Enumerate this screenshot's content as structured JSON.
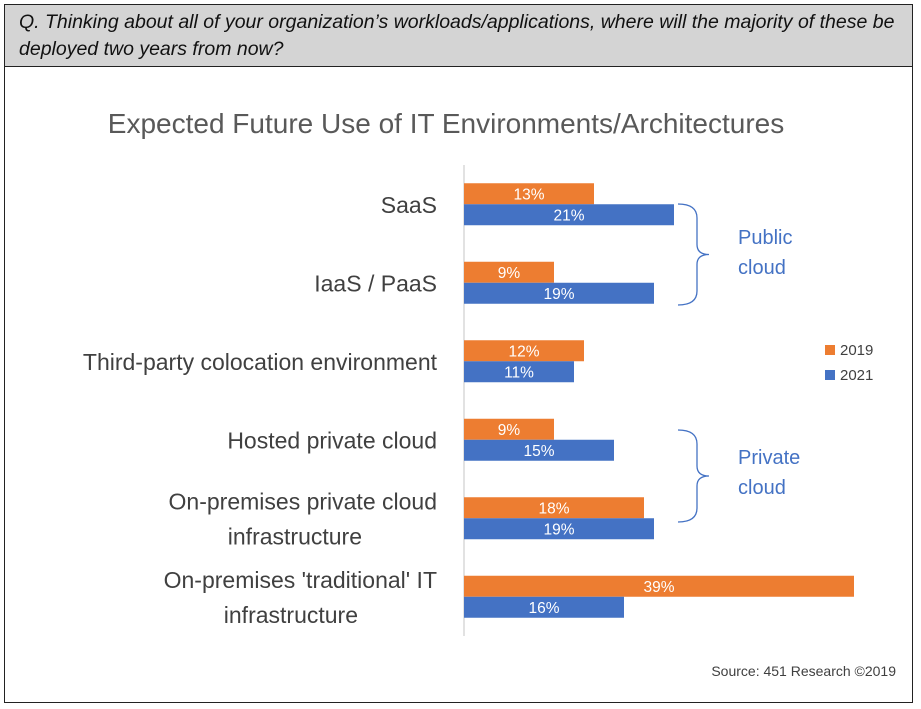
{
  "question": "Q. Thinking about all of your organization’s workloads/applications, where will the majority of these be deployed two years from now?",
  "source": "Source: 451 Research ©2019",
  "colors": {
    "series_2019": "#ED7D31",
    "series_2021": "#4472C4",
    "bracket": "#4472C4"
  },
  "chart_data": {
    "type": "bar",
    "orientation": "horizontal",
    "title": "Expected Future Use of IT Environments/Architectures",
    "categories": [
      [
        "SaaS"
      ],
      [
        "IaaS / PaaS"
      ],
      [
        "Third-party colocation environment"
      ],
      [
        "Hosted private cloud"
      ],
      [
        "On-premises private cloud",
        "infrastructure"
      ],
      [
        "On-premises 'traditional' IT",
        "infrastructure"
      ]
    ],
    "series": [
      {
        "name": "2019",
        "values": [
          13,
          9,
          12,
          9,
          18,
          39
        ],
        "labels": [
          "13%",
          "9%",
          "12%",
          "9%",
          "18%",
          "39%"
        ]
      },
      {
        "name": "2021",
        "values": [
          21,
          19,
          11,
          15,
          19,
          16
        ],
        "labels": [
          "21%",
          "19%",
          "11%",
          "15%",
          "19%",
          "16%"
        ]
      }
    ],
    "xlim": [
      0,
      40
    ],
    "legend": "right",
    "groups": [
      {
        "label": [
          "Public",
          "cloud"
        ],
        "categories": [
          "SaaS",
          "IaaS / PaaS"
        ]
      },
      {
        "label": [
          "Private",
          "cloud"
        ],
        "categories": [
          "Hosted private cloud",
          "On-premises private cloud infrastructure"
        ]
      }
    ]
  }
}
